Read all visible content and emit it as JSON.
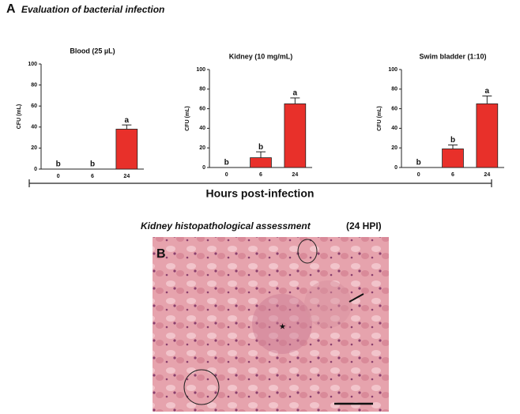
{
  "figure": {
    "panel_a": "A",
    "title_a": "Evaluation of bacterial infection",
    "xlabel": "Hours post-infection",
    "title_b": "Kidney histopathological assessment",
    "title_b_suffix": "(24 HPI)",
    "panel_b": "B"
  },
  "chart_data": [
    {
      "type": "bar",
      "title": "Blood (25 µL)",
      "ylabel": "CFU (mL)",
      "categories": [
        "0",
        "6",
        "24"
      ],
      "values": [
        0,
        0,
        38
      ],
      "errors": [
        0,
        0,
        4
      ],
      "annotations": [
        "b",
        "b",
        "a"
      ],
      "color": "#e8302a",
      "ylim": [
        0,
        100
      ],
      "yticks": [
        0,
        20,
        40,
        60,
        80,
        100
      ]
    },
    {
      "type": "bar",
      "title": "Kidney (10 mg/mL)",
      "ylabel": "CFU (mL)",
      "categories": [
        "0",
        "6",
        "24"
      ],
      "values": [
        0,
        10,
        65
      ],
      "errors": [
        0,
        6,
        6
      ],
      "annotations": [
        "b",
        "b",
        "a"
      ],
      "color": "#e8302a",
      "ylim": [
        0,
        100
      ],
      "yticks": [
        0,
        20,
        40,
        60,
        80,
        100
      ]
    },
    {
      "type": "bar",
      "title": "Swim bladder (1:10)",
      "ylabel": "CFU (mL)",
      "categories": [
        "0",
        "6",
        "24"
      ],
      "values": [
        0,
        19,
        65
      ],
      "errors": [
        0,
        4,
        8
      ],
      "annotations": [
        "b",
        "b",
        "a"
      ],
      "color": "#e8302a",
      "ylim": [
        0,
        100
      ],
      "yticks": [
        0,
        20,
        40,
        60,
        80,
        100
      ]
    }
  ]
}
